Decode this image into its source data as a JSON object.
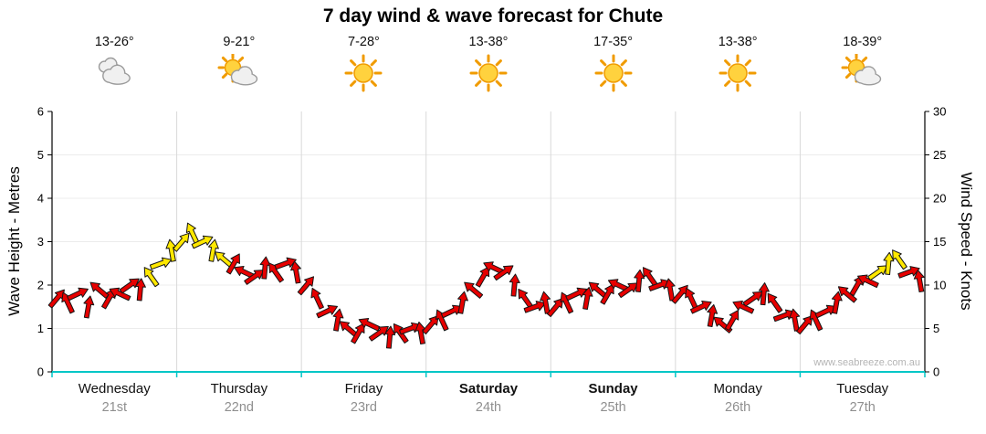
{
  "chart_data": {
    "type": "line",
    "title": "7 day wind & wave forecast for Chute",
    "watermark": "www.seabreeze.com.au",
    "y_left": {
      "label": "Wave Height - Metres",
      "min": 0,
      "max": 6,
      "ticks": [
        0,
        1,
        2,
        3,
        4,
        5,
        6
      ]
    },
    "y_right": {
      "label": "Wind Speed - Knots",
      "min": 0,
      "max": 30,
      "ticks": [
        0,
        5,
        10,
        15,
        20,
        25,
        30
      ]
    },
    "x_days": [
      {
        "name": "Wednesday",
        "date": "21st",
        "temp": "13-26°",
        "icon": "cloudy",
        "weekend": false
      },
      {
        "name": "Thursday",
        "date": "22nd",
        "temp": "9-21°",
        "icon": "partly-cloudy",
        "weekend": false
      },
      {
        "name": "Friday",
        "date": "23rd",
        "temp": "7-28°",
        "icon": "sunny",
        "weekend": false
      },
      {
        "name": "Saturday",
        "date": "24th",
        "temp": "13-38°",
        "icon": "sunny",
        "weekend": true
      },
      {
        "name": "Sunday",
        "date": "25th",
        "temp": "17-35°",
        "icon": "sunny",
        "weekend": true
      },
      {
        "name": "Monday",
        "date": "26th",
        "temp": "13-38°",
        "icon": "sunny",
        "weekend": false
      },
      {
        "name": "Tuesday",
        "date": "27th",
        "temp": "18-39°",
        "icon": "partly-cloudy",
        "weekend": false
      }
    ],
    "series": {
      "name": "wind-wave-arrows",
      "points_per_day": 12,
      "wind_knots_per_wave_m": 5,
      "wave_m_by_day": [
        [
          1.7,
          1.6,
          1.8,
          1.5,
          1.9,
          1.7,
          1.8,
          2.0,
          1.9,
          2.2,
          2.5,
          2.8
        ],
        [
          3.0,
          3.2,
          3.0,
          2.8,
          2.6,
          2.5,
          2.3,
          2.2,
          2.4,
          2.3,
          2.5,
          2.3
        ],
        [
          2.0,
          1.7,
          1.4,
          1.2,
          1.0,
          0.9,
          1.1,
          0.9,
          0.8,
          0.9,
          1.0,
          0.9
        ],
        [
          1.1,
          1.2,
          1.4,
          1.6,
          1.9,
          2.2,
          2.4,
          2.3,
          2.0,
          1.7,
          1.5,
          1.6
        ],
        [
          1.5,
          1.6,
          1.8,
          1.7,
          1.9,
          1.8,
          2.0,
          1.9,
          2.1,
          2.2,
          2.0,
          1.9
        ],
        [
          1.8,
          1.7,
          1.5,
          1.3,
          1.1,
          1.2,
          1.5,
          1.7,
          1.8,
          1.6,
          1.3,
          1.2
        ],
        [
          1.1,
          1.2,
          1.4,
          1.6,
          1.8,
          2.0,
          2.1,
          2.3,
          2.5,
          2.6,
          2.3,
          2.1
        ]
      ],
      "colors_by_day": [
        "rrrrrrrrryyy",
        "yyyyyrrrrrrr",
        "rrrrrrrrrrrr",
        "rrrrrrrrrrrr",
        "rrrrrrrrrrrr",
        "rrrrrrrrrrrr",
        "rrrrrrryyyrr"
      ],
      "angle_cycle": [
        40,
        -25,
        65,
        10,
        -50,
        30,
        -65,
        55,
        5,
        -35,
        70,
        -10
      ]
    },
    "colors": {
      "red": "#e60000",
      "yellow": "#ffe800",
      "bottom_axis": "#00c6c6",
      "grid_vertical": "#d9d9d9",
      "grid_horizontal": "#ececec",
      "date_text": "#8f8f8f",
      "watermark": "#b4b4b4"
    }
  }
}
